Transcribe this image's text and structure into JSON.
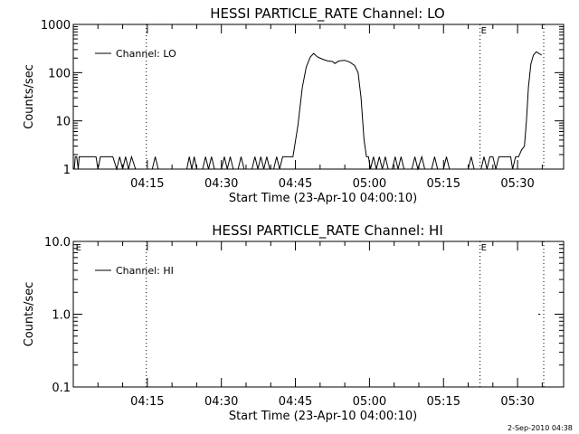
{
  "footer": {
    "timestamp": "2-Sep-2010 04:38"
  },
  "chart_data": [
    {
      "type": "line",
      "title": "HESSI PARTICLE_RATE Channel: LO",
      "xlabel": "Start Time (23-Apr-10 04:00:10)",
      "ylabel": "Counts/sec",
      "yscale": "log",
      "xlim": [
        "04:00:10",
        "05:39:30"
      ],
      "ylim": [
        1,
        1000
      ],
      "ytick_labels": [
        "1",
        "10",
        "100",
        "1000"
      ],
      "ytick_values": [
        1,
        10,
        100,
        1000
      ],
      "xtick_labels": [
        "04:15",
        "04:30",
        "04:45",
        "05:00",
        "05:15",
        "05:30"
      ],
      "xtick_minutes": [
        15,
        30,
        45,
        60,
        75,
        90
      ],
      "legend": {
        "label": "Channel: LO",
        "position": "top-left"
      },
      "vlines_minutes": [
        14.8,
        82.4,
        95.3
      ],
      "markers": [
        {
          "label": "E",
          "at_minute": 82.4
        }
      ],
      "series": [
        {
          "points": [
            [
              0.2,
              1
            ],
            [
              0.4,
              1.8
            ],
            [
              0.7,
              1.8
            ],
            [
              1.0,
              1
            ],
            [
              1.2,
              1.8
            ],
            [
              4.6,
              1.8
            ],
            [
              5.0,
              1
            ],
            [
              5.5,
              1.8
            ],
            [
              8.0,
              1.8
            ],
            [
              8.8,
              1
            ],
            [
              9.4,
              1.8
            ],
            [
              10.0,
              1
            ],
            [
              10.6,
              1.8
            ],
            [
              11.2,
              1
            ],
            [
              11.8,
              1.8
            ],
            [
              12.6,
              1
            ],
            [
              16.0,
              1
            ],
            [
              16.6,
              1.8
            ],
            [
              17.2,
              1
            ],
            [
              23.0,
              1
            ],
            [
              23.5,
              1.8
            ],
            [
              24.0,
              1
            ],
            [
              24.5,
              1.8
            ],
            [
              25.0,
              1
            ],
            [
              26.2,
              1
            ],
            [
              26.8,
              1.8
            ],
            [
              27.4,
              1
            ],
            [
              28.0,
              1.8
            ],
            [
              28.6,
              1
            ],
            [
              30.0,
              1
            ],
            [
              30.6,
              1.8
            ],
            [
              31.2,
              1
            ],
            [
              31.8,
              1.8
            ],
            [
              32.4,
              1
            ],
            [
              33.4,
              1
            ],
            [
              34.0,
              1.8
            ],
            [
              34.6,
              1
            ],
            [
              36.2,
              1
            ],
            [
              36.8,
              1.8
            ],
            [
              37.4,
              1
            ],
            [
              38.0,
              1.8
            ],
            [
              38.6,
              1
            ],
            [
              39.2,
              1.8
            ],
            [
              39.8,
              1
            ],
            [
              40.6,
              1
            ],
            [
              41.2,
              1.8
            ],
            [
              41.8,
              1
            ],
            [
              42.4,
              1.8
            ],
            [
              44.5,
              1.8
            ],
            [
              45.5,
              8
            ],
            [
              46.4,
              50
            ],
            [
              47.2,
              130
            ],
            [
              48.0,
              210
            ],
            [
              48.7,
              250
            ],
            [
              49.5,
              210
            ],
            [
              50.5,
              190
            ],
            [
              51.5,
              175
            ],
            [
              52.5,
              170
            ],
            [
              53.0,
              155
            ],
            [
              53.8,
              175
            ],
            [
              55.0,
              180
            ],
            [
              56.0,
              165
            ],
            [
              57.0,
              140
            ],
            [
              57.7,
              100
            ],
            [
              58.3,
              30
            ],
            [
              58.9,
              4
            ],
            [
              59.4,
              1.8
            ],
            [
              59.8,
              1.8
            ],
            [
              60.2,
              1
            ],
            [
              60.8,
              1.8
            ],
            [
              61.4,
              1
            ],
            [
              62.0,
              1.8
            ],
            [
              62.6,
              1
            ],
            [
              63.2,
              1.8
            ],
            [
              63.8,
              1
            ],
            [
              64.6,
              1
            ],
            [
              65.2,
              1.8
            ],
            [
              65.8,
              1
            ],
            [
              66.4,
              1.8
            ],
            [
              67.0,
              1
            ],
            [
              68.6,
              1
            ],
            [
              69.2,
              1.8
            ],
            [
              69.8,
              1
            ],
            [
              70.6,
              1.8
            ],
            [
              71.2,
              1
            ],
            [
              72.6,
              1
            ],
            [
              73.2,
              1.8
            ],
            [
              73.8,
              1
            ],
            [
              75.0,
              1
            ],
            [
              75.6,
              1.8
            ],
            [
              76.2,
              1
            ],
            [
              80.0,
              1
            ],
            [
              80.6,
              1.8
            ],
            [
              81.2,
              1
            ],
            [
              82.6,
              1
            ],
            [
              83.2,
              1.8
            ],
            [
              83.8,
              1
            ],
            [
              84.4,
              1.8
            ],
            [
              85.0,
              1.8
            ],
            [
              85.6,
              1
            ],
            [
              86.2,
              1.8
            ],
            [
              88.6,
              1.8
            ],
            [
              89.0,
              1
            ],
            [
              89.6,
              1.8
            ],
            [
              90.2,
              1.8
            ],
            [
              90.8,
              2.5
            ],
            [
              91.4,
              3
            ],
            [
              91.8,
              10
            ],
            [
              92.2,
              50
            ],
            [
              92.7,
              150
            ],
            [
              93.2,
              230
            ],
            [
              93.8,
              270
            ],
            [
              94.3,
              250
            ],
            [
              94.9,
              230
            ]
          ]
        }
      ]
    },
    {
      "type": "line",
      "title": "HESSI PARTICLE_RATE Channel: HI",
      "xlabel": "Start Time (23-Apr-10 04:00:10)",
      "ylabel": "Counts/sec",
      "yscale": "log",
      "xlim": [
        "04:00:10",
        "05:39:30"
      ],
      "ylim": [
        0.1,
        10
      ],
      "ytick_labels": [
        "0.1",
        "1.0",
        "10.0"
      ],
      "ytick_values": [
        0.1,
        1,
        10
      ],
      "xtick_labels": [
        "04:15",
        "04:30",
        "04:45",
        "05:00",
        "05:15",
        "05:30"
      ],
      "xtick_minutes": [
        15,
        30,
        45,
        60,
        75,
        90
      ],
      "legend": {
        "label": "Channel: HI",
        "position": "top-left"
      },
      "vlines_minutes": [
        14.8,
        82.4,
        95.3
      ],
      "markers": [
        {
          "label": "E",
          "at_minute": 0.3
        },
        {
          "label": "E",
          "at_minute": 82.4
        }
      ],
      "series": [
        {
          "points": [
            [
              94.2,
              1
            ],
            [
              94.6,
              1
            ]
          ]
        }
      ]
    }
  ]
}
